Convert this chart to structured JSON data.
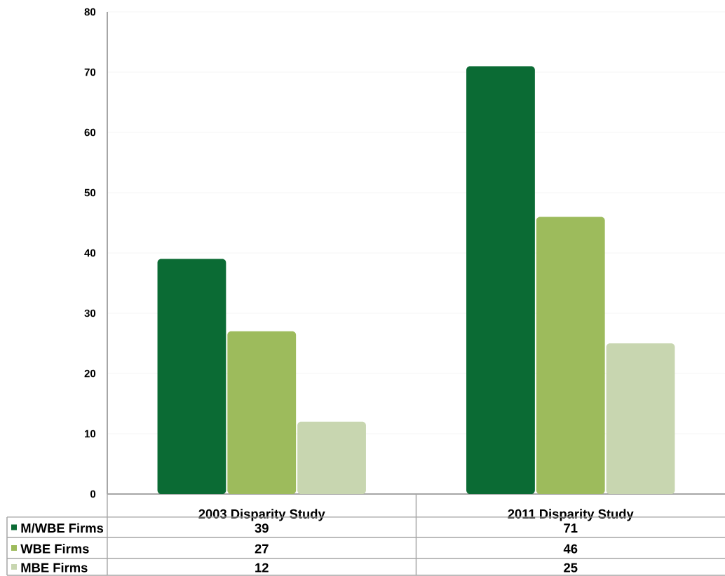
{
  "chart_data": {
    "type": "bar",
    "categories": [
      "2003 Disparity Study",
      "2011 Disparity Study"
    ],
    "series": [
      {
        "name": "M/WBE Firms",
        "color": "#0b6b34",
        "values": [
          39,
          71
        ]
      },
      {
        "name": "WBE Firms",
        "color": "#9dbb5c",
        "values": [
          27,
          46
        ]
      },
      {
        "name": "MBE Firms",
        "color": "#c8d6b0",
        "values": [
          12,
          25
        ]
      }
    ],
    "ylim": [
      0,
      80
    ],
    "yticks": [
      0,
      10,
      20,
      30,
      40,
      50,
      60,
      70,
      80
    ],
    "grid": "y",
    "legend": "bottom",
    "data_labels": true
  }
}
